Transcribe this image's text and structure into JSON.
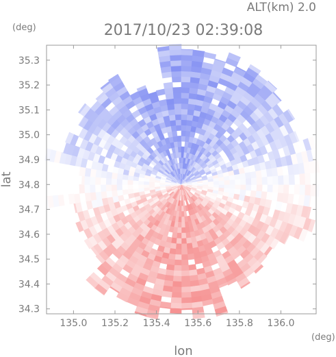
{
  "chart_data": {
    "type": "heatmap",
    "header": "ALT(km)  2.0",
    "title": "2017/10/23 02:39:08",
    "xlabel": "lon",
    "ylabel": "lat",
    "xunit": "(deg)",
    "yunit": "(deg)",
    "xlim": [
      134.87,
      136.17
    ],
    "ylim": [
      34.28,
      35.36
    ],
    "xticks": [
      "135.0",
      "135.2",
      "135.4",
      "135.6",
      "135.8",
      "136.0"
    ],
    "yticks": [
      "34.3",
      "34.4",
      "34.5",
      "34.6",
      "34.7",
      "34.8",
      "34.9",
      "35.0",
      "35.1",
      "35.2",
      "35.3"
    ],
    "grid": false,
    "field": {
      "description_center_lon": 135.52,
      "center_lat": 34.8,
      "radius_deg": 0.5,
      "colormap": {
        "negative": "#3a4fe0",
        "zero": "#ffffff",
        "positive": "#f05050"
      },
      "north_sign": "negative",
      "south_sign": "positive",
      "range": [
        -1,
        1
      ]
    }
  }
}
